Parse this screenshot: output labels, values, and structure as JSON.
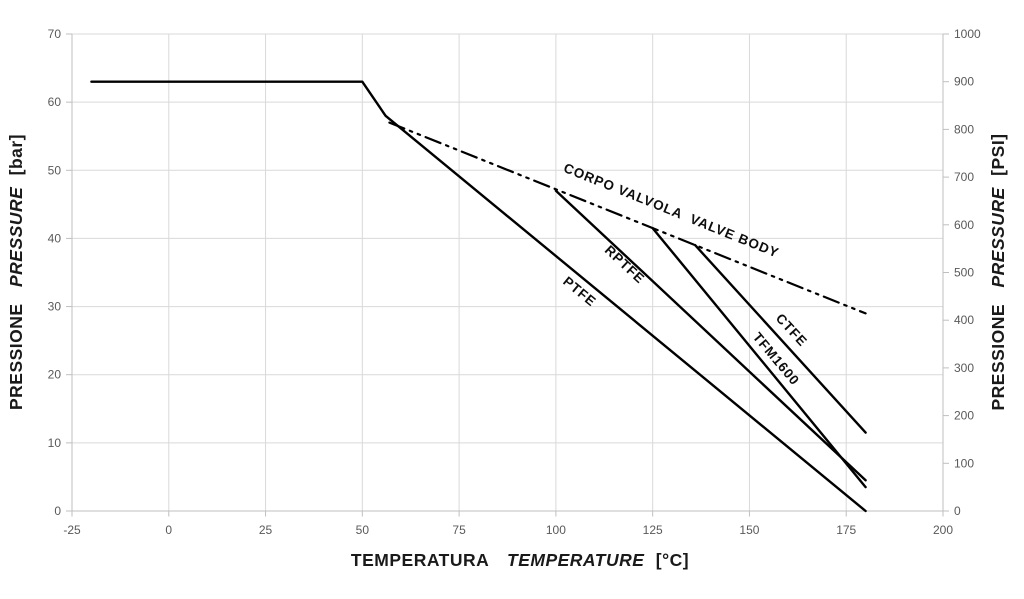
{
  "colors": {
    "background": "#ffffff",
    "curve": "#000000",
    "gridline": "#d9d9d9",
    "axis_line": "#bfbfbf",
    "tick_mark": "#bfbfbf",
    "tick_text": "#595959",
    "title_text": "#1a1a1a"
  },
  "chart_data": {
    "type": "line",
    "title": "",
    "grid": true,
    "legend_position": "labels-on-curves",
    "x_axis": {
      "label_it": "TEMPERATURA",
      "label_en": "TEMPERATURE",
      "unit": "[°C]",
      "min": -25,
      "max": 200,
      "ticks": [
        -25,
        0,
        25,
        50,
        75,
        100,
        125,
        150,
        175,
        200
      ]
    },
    "y_axis_left": {
      "label_it": "PRESSIONE",
      "label_en": "PRESSURE",
      "unit": "[bar]",
      "min": 0,
      "max": 70,
      "ticks": [
        0,
        10,
        20,
        30,
        40,
        50,
        60,
        70
      ]
    },
    "y_axis_right": {
      "label_it": "PRESSIONE",
      "label_en": "PRESSURE",
      "unit": "[PSI]",
      "min": 0,
      "max": 1000,
      "ticks": [
        0,
        100,
        200,
        300,
        400,
        500,
        600,
        700,
        800,
        900,
        1000
      ]
    },
    "series": [
      {
        "name": "CORPO VALVOLA / VALVE BODY",
        "line_style": "dash-dot-dot",
        "stroke_width": 2.2,
        "points_c_bar": [
          [
            57,
            57
          ],
          [
            180,
            29
          ]
        ],
        "label": {
          "text": "CORPO VALVOLA  VALVE BODY",
          "t": 129.4,
          "bar": 43.5,
          "angle": 22
        }
      },
      {
        "name": "PTFE",
        "line_style": "solid",
        "stroke_width": 2.4,
        "points_c_bar": [
          [
            -20,
            63
          ],
          [
            50,
            63
          ],
          [
            56,
            58
          ],
          [
            180,
            0
          ]
        ],
        "label": {
          "text": "PTFE",
          "t": 105.4,
          "bar": 31.7,
          "angle": 39.5
        }
      },
      {
        "name": "RPTFE",
        "line_style": "solid",
        "stroke_width": 2.4,
        "points_c_bar": [
          [
            100,
            47
          ],
          [
            180,
            4.5
          ]
        ],
        "label": {
          "text": "RPTFE",
          "t": 117,
          "bar": 35.7,
          "angle": 43
        }
      },
      {
        "name": "TFM1600",
        "line_style": "solid",
        "stroke_width": 2.4,
        "points_c_bar": [
          [
            125,
            41.5
          ],
          [
            180,
            3.5
          ]
        ],
        "label": {
          "text": "TFM1600",
          "t": 156,
          "bar": 21.9,
          "angle": 50
        }
      },
      {
        "name": "CTFE",
        "line_style": "solid",
        "stroke_width": 2.4,
        "points_c_bar": [
          [
            136,
            39
          ],
          [
            180,
            11.5
          ]
        ],
        "label": {
          "text": "CTFE",
          "t": 160,
          "bar": 26.1,
          "angle": 47
        }
      }
    ]
  }
}
